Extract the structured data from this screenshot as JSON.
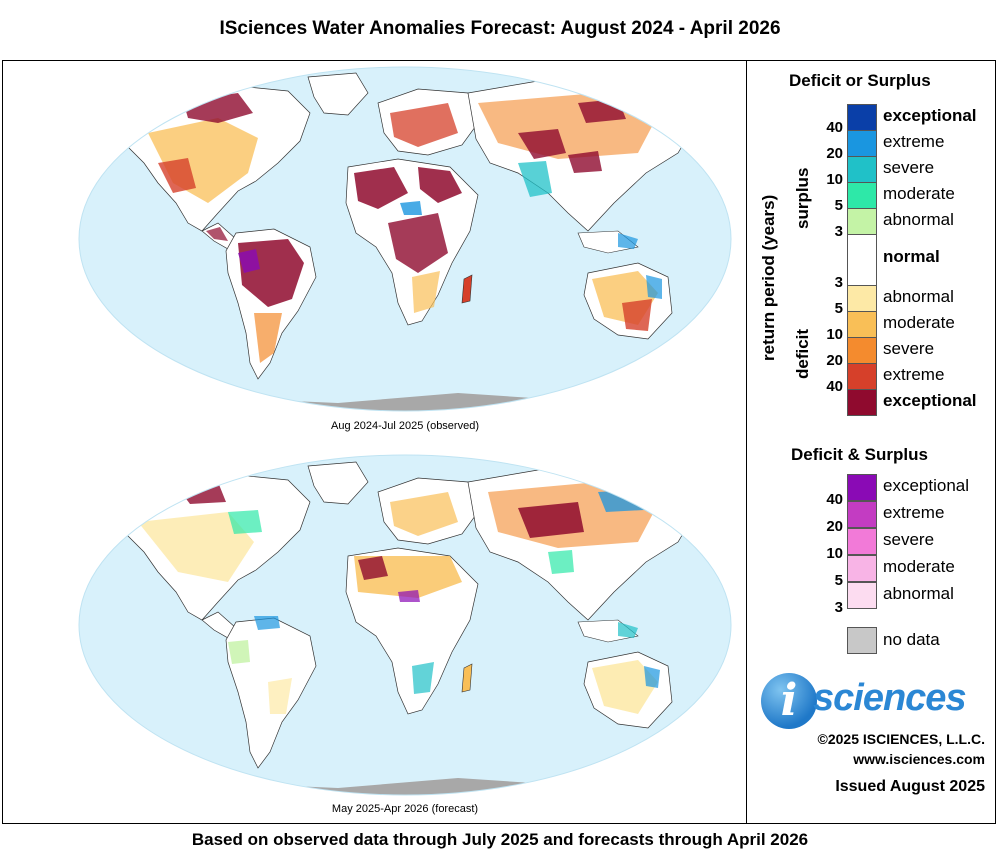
{
  "title": "ISciences Water Anomalies Forecast: August 2024 - April 2026",
  "maps": [
    {
      "caption": "Aug 2024-Jul 2025 (observed)"
    },
    {
      "caption": "May 2025-Apr 2026 (forecast)"
    }
  ],
  "legend": {
    "deficit_surplus": {
      "heading": "Deficit or Surplus",
      "axis_label": "return period (years)",
      "surplus_label": "surplus",
      "deficit_label": "deficit",
      "normal_label": "normal",
      "surplus_classes": [
        {
          "label": "exceptional",
          "color": "#0a3fa8"
        },
        {
          "label": "extreme",
          "color": "#1a96e0"
        },
        {
          "label": "severe",
          "color": "#20c1c8"
        },
        {
          "label": "moderate",
          "color": "#2ee8a8"
        },
        {
          "label": "abnormal",
          "color": "#c4f3a6"
        }
      ],
      "surplus_ticks": [
        "40",
        "20",
        "10",
        "5",
        "3"
      ],
      "deficit_classes": [
        {
          "label": "abnormal",
          "color": "#fde9a6"
        },
        {
          "label": "moderate",
          "color": "#f9bf57"
        },
        {
          "label": "severe",
          "color": "#f48b2e"
        },
        {
          "label": "extreme",
          "color": "#d6402a"
        },
        {
          "label": "exceptional",
          "color": "#8f0a2e"
        }
      ],
      "deficit_ticks": [
        "3",
        "5",
        "10",
        "20",
        "40"
      ]
    },
    "both": {
      "heading": "Deficit & Surplus",
      "classes": [
        {
          "label": "exceptional",
          "color": "#8a0ab5"
        },
        {
          "label": "extreme",
          "color": "#c33cc2"
        },
        {
          "label": "severe",
          "color": "#f27ad8"
        },
        {
          "label": "moderate",
          "color": "#f8b4e6"
        },
        {
          "label": "abnormal",
          "color": "#fcdcf0"
        }
      ],
      "ticks": [
        "40",
        "20",
        "10",
        "5",
        "3"
      ]
    },
    "no_data": {
      "label": "no data",
      "color": "#c8c8c8"
    }
  },
  "branding": {
    "logo_letter": "i",
    "logo_text": "sciences",
    "copyright": "©2025 ISCIENCES, L.L.C.",
    "website": "www.isciences.com",
    "issued": "Issued August 2025"
  },
  "footer": "Based on observed data through July 2025 and forecasts through April 2026",
  "colors": {
    "ocean": "#d8f1fb",
    "land_normal": "#ffffff",
    "antarctica": "#a8a8a8"
  }
}
